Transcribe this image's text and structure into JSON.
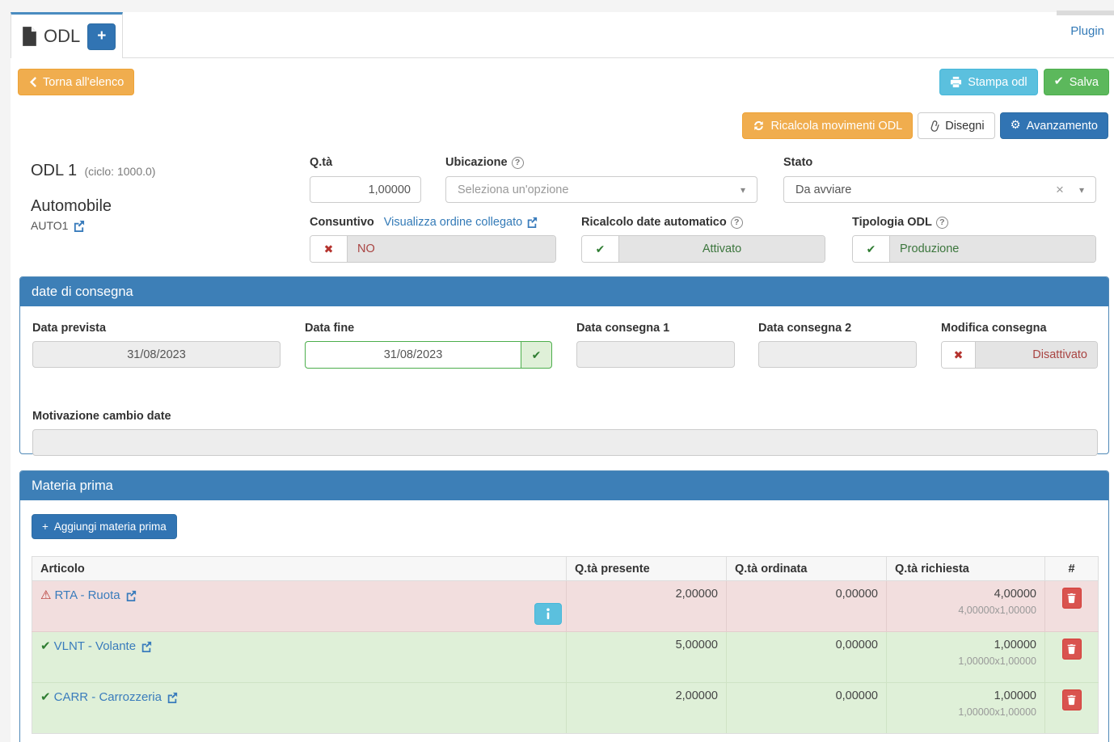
{
  "icons": {
    "check": "✔",
    "cross": "✖",
    "warning": "⚠",
    "gear": "⚙",
    "plus": "+",
    "question": "?",
    "clear": "×",
    "caret": "▾",
    "document-icon": "svg-shape",
    "chevron-left-icon": "svg-shape",
    "printer-icon": "svg-shape",
    "refresh-icon": "svg-shape",
    "paperclip-icon": "svg-shape",
    "external-link-icon": "svg-shape",
    "trash-icon": "svg-shape",
    "info-icon": "svg-shape"
  },
  "colors": {
    "accent_blue": "#3174b3",
    "panel_header_blue": "#3d7fb7",
    "warning_orange": "#f0ad4e",
    "info_lightblue": "#5bc0de",
    "success_green": "#5cb85c",
    "danger_red": "#d9534f",
    "row_danger_bg": "#f2dede",
    "row_success_bg": "#dff0d8",
    "text_red": "#a94442",
    "text_green": "#3c763d"
  },
  "header": {
    "tab_label": "ODL",
    "plugin_link": "Plugin"
  },
  "toolbar": {
    "back": "Torna all'elenco",
    "print": "Stampa odl",
    "save": "Salva",
    "recalc_movements": "Ricalcola movimenti ODL",
    "drawings": "Disegni",
    "progress": "Avanzamento"
  },
  "order": {
    "title": "ODL 1",
    "cycle": "(ciclo: 1000.0)",
    "product_name": "Automobile",
    "product_code": "AUTO1"
  },
  "fields": {
    "qty": {
      "label": "Q.tà",
      "value": "1,00000"
    },
    "location": {
      "label": "Ubicazione",
      "placeholder": "Seleziona un'opzione"
    },
    "status": {
      "label": "Stato",
      "value": "Da avviare"
    },
    "consuntivo": {
      "label": "Consuntivo",
      "link": "Visualizza ordine collegato",
      "value": "NO"
    },
    "recalc_dates": {
      "label": "Ricalcolo date automatico",
      "value": "Attivato"
    },
    "odl_type": {
      "label": "Tipologia ODL",
      "value": "Produzione"
    }
  },
  "delivery_panel": {
    "title": "date di consegna",
    "data_prevista": {
      "label": "Data prevista",
      "value": "31/08/2023"
    },
    "data_fine": {
      "label": "Data fine",
      "value": "31/08/2023"
    },
    "data_consegna1": {
      "label": "Data consegna 1",
      "value": ""
    },
    "data_consegna2": {
      "label": "Data consegna 2",
      "value": ""
    },
    "modifica_consegna": {
      "label": "Modifica consegna",
      "value": "Disattivato"
    },
    "motivazione": {
      "label": "Motivazione cambio date",
      "value": ""
    }
  },
  "materials_panel": {
    "title": "Materia prima",
    "add_button": "Aggiungi materia prima",
    "table": {
      "headers": [
        "Articolo",
        "Q.tà presente",
        "Q.tà ordinata",
        "Q.tà richiesta",
        "#"
      ],
      "rows": [
        {
          "article": "RTA - Ruota",
          "status": "danger",
          "present": "2,00000",
          "ordered": "0,00000",
          "required": "4,00000",
          "required_detail": "4,00000x1,00000",
          "has_info": true
        },
        {
          "article": "VLNT - Volante",
          "status": "success",
          "present": "5,00000",
          "ordered": "0,00000",
          "required": "1,00000",
          "required_detail": "1,00000x1,00000",
          "has_info": false
        },
        {
          "article": "CARR - Carrozzeria",
          "status": "success",
          "present": "2,00000",
          "ordered": "0,00000",
          "required": "1,00000",
          "required_detail": "1,00000x1,00000",
          "has_info": false
        }
      ]
    }
  }
}
